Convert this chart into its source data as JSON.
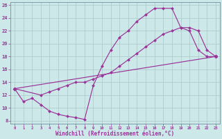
{
  "xlabel": "Windchill (Refroidissement éolien,°C)",
  "bg_color": "#cde8e8",
  "line_color": "#993399",
  "xlim": [
    -0.5,
    23.5
  ],
  "ylim": [
    7.5,
    26.5
  ],
  "xticks": [
    0,
    1,
    2,
    3,
    4,
    5,
    6,
    7,
    8,
    9,
    10,
    11,
    12,
    13,
    14,
    15,
    16,
    17,
    18,
    19,
    20,
    21,
    22,
    23
  ],
  "yticks": [
    8,
    10,
    12,
    14,
    16,
    18,
    20,
    22,
    24,
    26
  ],
  "curve1_x": [
    0,
    1,
    2,
    3,
    4,
    5,
    6,
    7,
    8,
    9,
    10,
    11,
    12,
    13,
    14,
    15,
    16,
    17,
    18,
    19,
    20,
    21,
    22,
    23
  ],
  "curve1_y": [
    13.0,
    11.0,
    11.5,
    10.5,
    9.5,
    9.0,
    8.7,
    8.5,
    8.2,
    13.5,
    16.5,
    19.0,
    21.0,
    22.0,
    23.5,
    24.5,
    25.5,
    25.5,
    25.5,
    22.5,
    22.0,
    19.0,
    18.0,
    18.0
  ],
  "curve2_x": [
    0,
    3,
    4,
    5,
    6,
    7,
    8,
    9,
    10,
    11,
    12,
    13,
    14,
    15,
    16,
    17,
    18,
    19,
    20,
    21,
    22,
    23
  ],
  "curve2_y": [
    13.0,
    12.0,
    12.5,
    13.0,
    13.5,
    14.0,
    14.0,
    14.5,
    15.0,
    15.5,
    16.5,
    17.5,
    18.5,
    19.5,
    20.5,
    21.5,
    22.0,
    22.5,
    22.5,
    22.0,
    19.0,
    18.0
  ],
  "curve3_x": [
    0,
    23
  ],
  "curve3_y": [
    13.0,
    18.0
  ]
}
